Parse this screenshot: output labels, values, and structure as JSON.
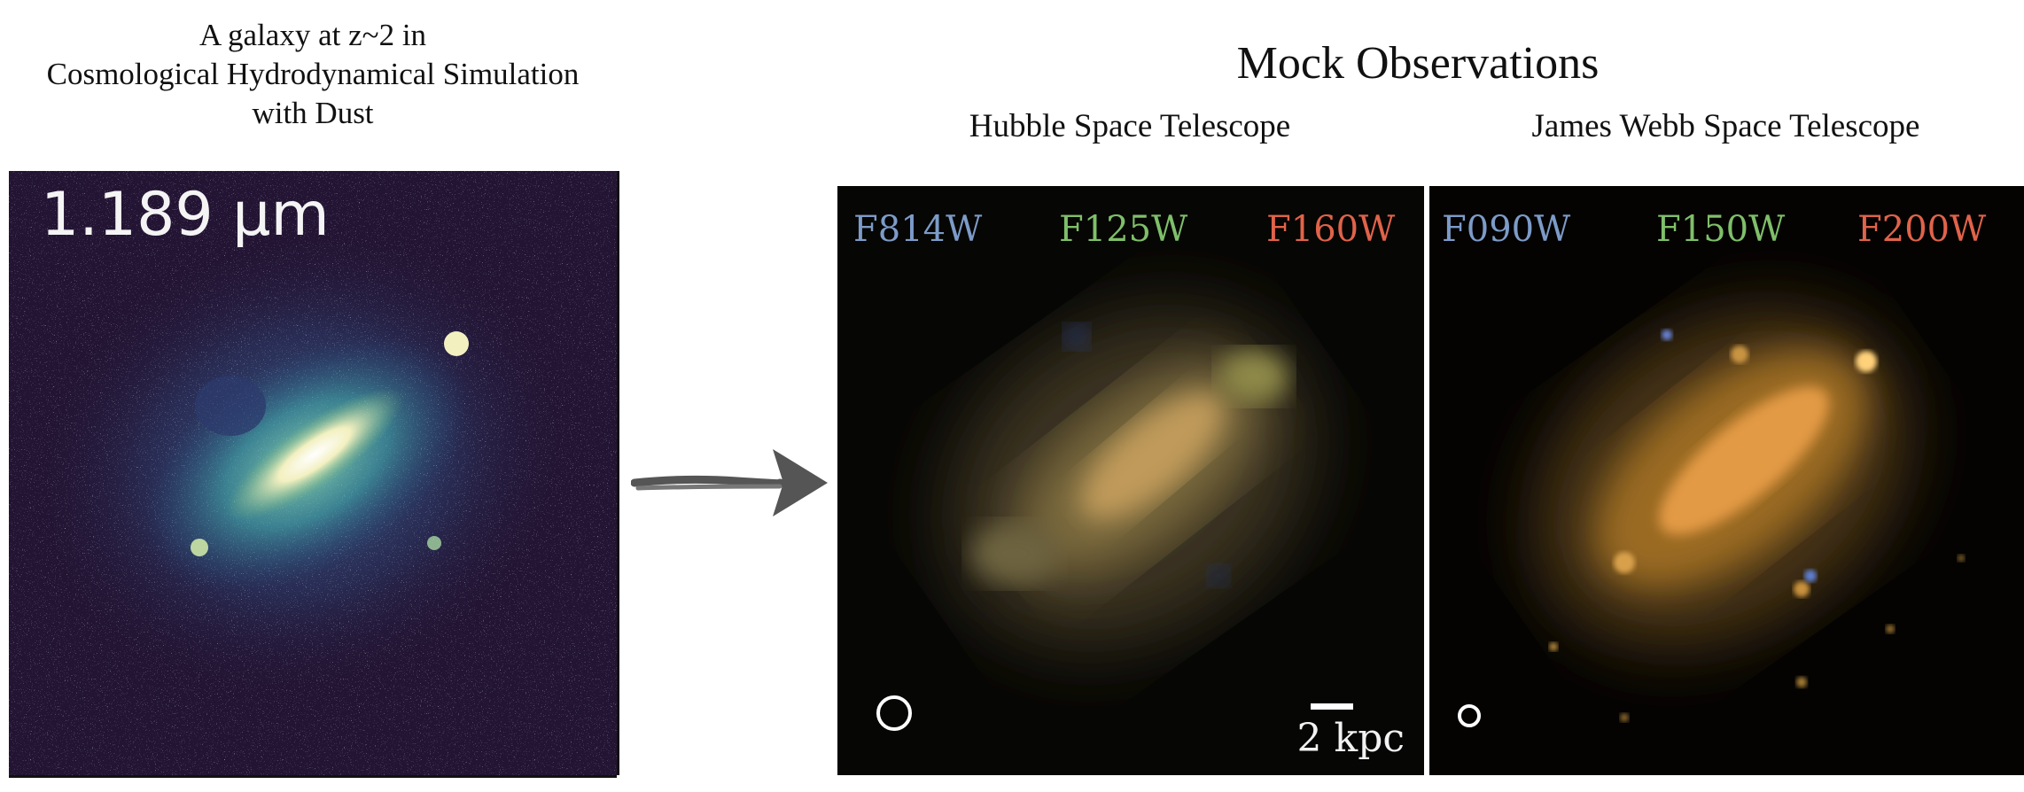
{
  "left": {
    "caption_lines": [
      "A galaxy at z~2 in",
      "Cosmological Hydrodynamical Simulation",
      "with Dust"
    ],
    "wavelength_label": "1.189 μm"
  },
  "right": {
    "title": "Mock Observations",
    "hst": {
      "title": "Hubble Space Telescope",
      "filters": [
        {
          "name": "F814W",
          "color": "#7d9bc8"
        },
        {
          "name": "F125W",
          "color": "#7fbf6a"
        },
        {
          "name": "F160W",
          "color": "#e0634a"
        }
      ],
      "scale_label": "2 kpc"
    },
    "jwst": {
      "title": "James Webb Space Telescope",
      "filters": [
        {
          "name": "F090W",
          "color": "#7d9bc8"
        },
        {
          "name": "F150W",
          "color": "#7fbf6a"
        },
        {
          "name": "F200W",
          "color": "#e0634a"
        }
      ]
    }
  },
  "icons": {
    "arrow": "right-arrow-icon",
    "beam": "psf-circle-icon"
  }
}
